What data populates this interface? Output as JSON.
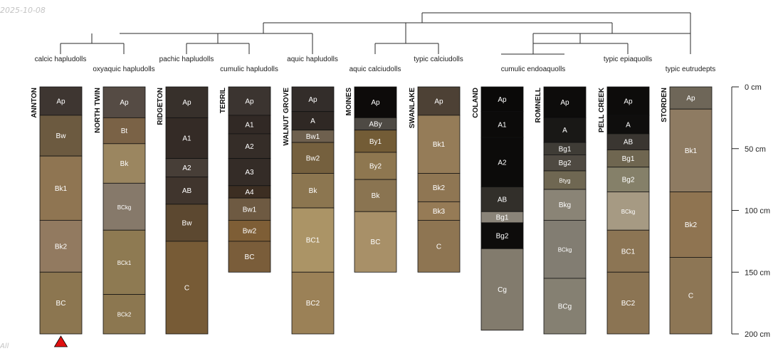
{
  "watermark_date": "2025-10-08",
  "corner_text": "All",
  "depth_axis": {
    "max_cm": 200,
    "ticks": [
      {
        "value": 0,
        "label": "0 cm"
      },
      {
        "value": 50,
        "label": "50 cm"
      },
      {
        "value": 100,
        "label": "100 cm"
      },
      {
        "value": 150,
        "label": "150 cm"
      },
      {
        "value": 200,
        "label": "200 cm"
      }
    ]
  },
  "marker": {
    "profile": "ANNTON",
    "color": "#e01010"
  },
  "profiles": [
    {
      "name": "ANNTON",
      "classification": "calcic hapludolls",
      "horizons": [
        {
          "name": "Ap",
          "top": 0,
          "bottom": 23,
          "color": "#3e3631"
        },
        {
          "name": "Bw",
          "top": 23,
          "bottom": 56,
          "color": "#6c5a40"
        },
        {
          "name": "Bk1",
          "top": 56,
          "bottom": 108,
          "color": "#8f7552"
        },
        {
          "name": "Bk2",
          "top": 108,
          "bottom": 150,
          "color": "#927a60"
        },
        {
          "name": "BC",
          "top": 150,
          "bottom": 200,
          "color": "#8c7650"
        }
      ]
    },
    {
      "name": "NORTH TWIN",
      "classification": "oxyaquic hapludolls",
      "horizons": [
        {
          "name": "Ap",
          "top": 0,
          "bottom": 25,
          "color": "#554b44"
        },
        {
          "name": "Bt",
          "top": 25,
          "bottom": 46,
          "color": "#7a6246"
        },
        {
          "name": "Bk",
          "top": 46,
          "bottom": 78,
          "color": "#9b8660"
        },
        {
          "name": "BCkg",
          "top": 78,
          "bottom": 116,
          "color": "#86796a"
        },
        {
          "name": "BCk1",
          "top": 116,
          "bottom": 168,
          "color": "#8e7a52"
        },
        {
          "name": "BCk2",
          "top": 168,
          "bottom": 200,
          "color": "#8c7750"
        }
      ]
    },
    {
      "name": "RIDGETON",
      "classification": "pachic hapludolls",
      "horizons": [
        {
          "name": "Ap",
          "top": 0,
          "bottom": 25,
          "color": "#37302b"
        },
        {
          "name": "A1",
          "top": 25,
          "bottom": 58,
          "color": "#342b26"
        },
        {
          "name": "A2",
          "top": 58,
          "bottom": 73,
          "color": "#473e37"
        },
        {
          "name": "AB",
          "top": 73,
          "bottom": 95,
          "color": "#40352d"
        },
        {
          "name": "Bw",
          "top": 95,
          "bottom": 125,
          "color": "#5c4830"
        },
        {
          "name": "C",
          "top": 125,
          "bottom": 200,
          "color": "#775b36"
        }
      ]
    },
    {
      "name": "TERRIL",
      "classification": "cumulic hapludolls",
      "horizons": [
        {
          "name": "Ap",
          "top": 0,
          "bottom": 23,
          "color": "#3b3430"
        },
        {
          "name": "A1",
          "top": 23,
          "bottom": 38,
          "color": "#312925"
        },
        {
          "name": "A2",
          "top": 38,
          "bottom": 58,
          "color": "#352d28"
        },
        {
          "name": "A3",
          "top": 58,
          "bottom": 80,
          "color": "#342c27"
        },
        {
          "name": "A4",
          "top": 80,
          "bottom": 90,
          "color": "#3c2e22"
        },
        {
          "name": "Bw1",
          "top": 90,
          "bottom": 108,
          "color": "#6e5a42"
        },
        {
          "name": "Bw2",
          "top": 108,
          "bottom": 125,
          "color": "#7e5e36"
        },
        {
          "name": "BC",
          "top": 125,
          "bottom": 150,
          "color": "#7a5d3a"
        }
      ]
    },
    {
      "name": "WALNUT GROVE",
      "classification": "aquic hapludolls",
      "horizons": [
        {
          "name": "Ap",
          "top": 0,
          "bottom": 20,
          "color": "#332d2a"
        },
        {
          "name": "A",
          "top": 20,
          "bottom": 35,
          "color": "#2f2824"
        },
        {
          "name": "Bw1",
          "top": 35,
          "bottom": 45,
          "color": "#6e604e"
        },
        {
          "name": "Bw2",
          "top": 45,
          "bottom": 70,
          "color": "#75603e"
        },
        {
          "name": "Bk",
          "top": 70,
          "bottom": 98,
          "color": "#8c7650"
        },
        {
          "name": "BC1",
          "top": 98,
          "bottom": 150,
          "color": "#ab9466"
        },
        {
          "name": "BC2",
          "top": 150,
          "bottom": 200,
          "color": "#9b8157"
        }
      ]
    },
    {
      "name": "MOINES",
      "classification": "aquic calciudolls",
      "horizons": [
        {
          "name": "Ap",
          "top": 0,
          "bottom": 25,
          "color": "#0d0b0a"
        },
        {
          "name": "ABy",
          "top": 25,
          "bottom": 35,
          "color": "#4e4a44"
        },
        {
          "name": "By1",
          "top": 35,
          "bottom": 53,
          "color": "#735c36"
        },
        {
          "name": "By2",
          "top": 53,
          "bottom": 75,
          "color": "#8e7750"
        },
        {
          "name": "Bk",
          "top": 75,
          "bottom": 101,
          "color": "#8a7451"
        },
        {
          "name": "BC",
          "top": 101,
          "bottom": 150,
          "color": "#a89068"
        }
      ]
    },
    {
      "name": "SWANLAKE",
      "classification": "typic calciudolls",
      "horizons": [
        {
          "name": "Ap",
          "top": 0,
          "bottom": 23,
          "color": "#4d4135"
        },
        {
          "name": "Bk1",
          "top": 23,
          "bottom": 70,
          "color": "#957c58"
        },
        {
          "name": "Bk2",
          "top": 70,
          "bottom": 93,
          "color": "#8f7653"
        },
        {
          "name": "Bk3",
          "top": 93,
          "bottom": 108,
          "color": "#967b56"
        },
        {
          "name": "C",
          "top": 108,
          "bottom": 150,
          "color": "#8e7552"
        }
      ]
    },
    {
      "name": "COLAND",
      "classification": "",
      "horizons": [
        {
          "name": "Ap",
          "top": 0,
          "bottom": 20,
          "color": "#0a0908"
        },
        {
          "name": "A1",
          "top": 20,
          "bottom": 41,
          "color": "#0c0b0a"
        },
        {
          "name": "A2",
          "top": 41,
          "bottom": 81,
          "color": "#0c0b0a"
        },
        {
          "name": "AB",
          "top": 81,
          "bottom": 101,
          "color": "#322f2a"
        },
        {
          "name": "Bg1",
          "top": 101,
          "bottom": 110,
          "color": "#8a8479"
        },
        {
          "name": "Bg2",
          "top": 110,
          "bottom": 131,
          "color": "#0d0c0b"
        },
        {
          "name": "Cg",
          "top": 131,
          "bottom": 197,
          "color": "#827b6d"
        }
      ]
    },
    {
      "name": "ROMNELL",
      "classification": "cumulic endoaquolls",
      "horizons": [
        {
          "name": "Ap",
          "top": 0,
          "bottom": 25,
          "color": "#0d0c0b"
        },
        {
          "name": "A",
          "top": 25,
          "bottom": 45,
          "color": "#191816"
        },
        {
          "name": "Bg1",
          "top": 45,
          "bottom": 55,
          "color": "#3f3c36"
        },
        {
          "name": "Bg2",
          "top": 55,
          "bottom": 68,
          "color": "#4f4a42"
        },
        {
          "name": "Btyg",
          "top": 68,
          "bottom": 83,
          "color": "#6f6752"
        },
        {
          "name": "Bkg",
          "top": 83,
          "bottom": 108,
          "color": "#8a8476"
        },
        {
          "name": "BCkg",
          "top": 108,
          "bottom": 155,
          "color": "#827d72"
        },
        {
          "name": "BCg",
          "top": 155,
          "bottom": 200,
          "color": "#858072"
        }
      ]
    },
    {
      "name": "PELL CREEK",
      "classification": "typic epiaquolls",
      "horizons": [
        {
          "name": "Ap",
          "top": 0,
          "bottom": 23,
          "color": "#0d0c0b"
        },
        {
          "name": "A",
          "top": 23,
          "bottom": 38,
          "color": "#0f0e0d"
        },
        {
          "name": "AB",
          "top": 38,
          "bottom": 51,
          "color": "#3a3631"
        },
        {
          "name": "Bg1",
          "top": 51,
          "bottom": 65,
          "color": "#6f6650"
        },
        {
          "name": "Bg2",
          "top": 65,
          "bottom": 85,
          "color": "#858069"
        },
        {
          "name": "BCkg",
          "top": 85,
          "bottom": 116,
          "color": "#a69a83"
        },
        {
          "name": "BC1",
          "top": 116,
          "bottom": 150,
          "color": "#8c7554"
        },
        {
          "name": "BC2",
          "top": 150,
          "bottom": 200,
          "color": "#8b7453"
        }
      ]
    },
    {
      "name": "STORDEN",
      "classification": "typic eutrudepts",
      "horizons": [
        {
          "name": "Ap",
          "top": 0,
          "bottom": 18,
          "color": "#6e6658"
        },
        {
          "name": "Bk1",
          "top": 18,
          "bottom": 85,
          "color": "#8e7b62"
        },
        {
          "name": "Bk2",
          "top": 85,
          "bottom": 138,
          "color": "#8f7451"
        },
        {
          "name": "C",
          "top": 138,
          "bottom": 200,
          "color": "#8d7655"
        }
      ]
    }
  ]
}
